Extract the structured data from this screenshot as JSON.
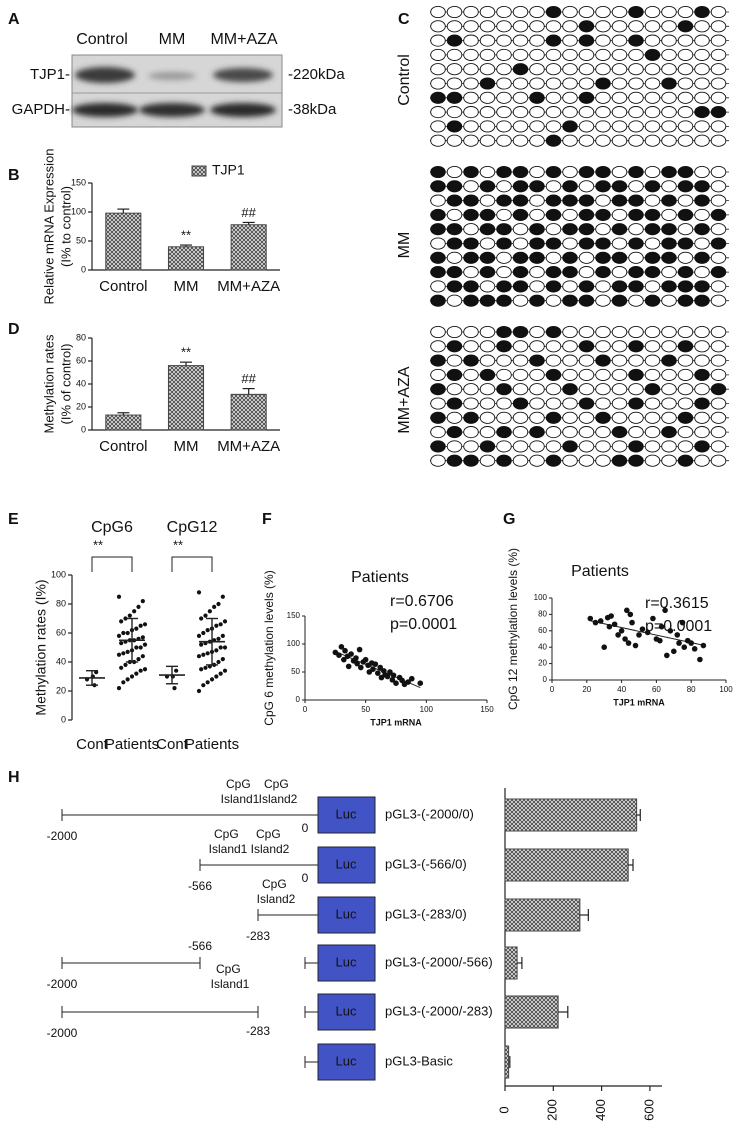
{
  "panel_labels": [
    "A",
    "B",
    "C",
    "D",
    "E",
    "F",
    "G",
    "H"
  ],
  "blot": {
    "lanes": [
      "Control",
      "MM",
      "MM+AZA"
    ],
    "rows": [
      {
        "label": "TJP1-",
        "size": "-220kDa"
      },
      {
        "label": "GAPDH-",
        "size": "-38kDa"
      }
    ]
  },
  "methylation": {
    "groups": [
      {
        "name": "Control",
        "rows": [
          [
            0,
            0,
            0,
            0,
            0,
            0,
            0,
            1,
            0,
            0,
            0,
            0,
            1,
            0,
            0,
            0,
            1,
            0
          ],
          [
            0,
            0,
            0,
            0,
            0,
            0,
            0,
            0,
            0,
            1,
            0,
            0,
            0,
            0,
            0,
            1,
            0,
            0
          ],
          [
            0,
            1,
            0,
            0,
            0,
            0,
            0,
            1,
            0,
            1,
            0,
            0,
            1,
            0,
            0,
            0,
            0,
            0
          ],
          [
            0,
            0,
            0,
            0,
            0,
            0,
            0,
            0,
            0,
            0,
            0,
            0,
            0,
            1,
            0,
            0,
            0,
            0
          ],
          [
            0,
            0,
            0,
            0,
            0,
            1,
            0,
            0,
            0,
            0,
            0,
            0,
            0,
            0,
            0,
            0,
            0,
            0
          ],
          [
            0,
            0,
            0,
            1,
            0,
            0,
            0,
            0,
            0,
            0,
            1,
            0,
            0,
            0,
            1,
            0,
            0,
            0
          ],
          [
            1,
            1,
            0,
            0,
            0,
            0,
            1,
            0,
            0,
            1,
            0,
            0,
            0,
            0,
            0,
            0,
            0,
            0
          ],
          [
            0,
            0,
            0,
            0,
            0,
            0,
            0,
            0,
            0,
            0,
            0,
            0,
            0,
            0,
            0,
            0,
            1,
            1
          ],
          [
            0,
            1,
            0,
            0,
            0,
            0,
            0,
            0,
            1,
            0,
            0,
            0,
            0,
            0,
            0,
            0,
            0,
            0
          ],
          [
            0,
            0,
            0,
            0,
            0,
            0,
            0,
            1,
            0,
            0,
            0,
            0,
            0,
            0,
            0,
            0,
            0,
            0
          ]
        ]
      },
      {
        "name": "MM",
        "rows": [
          [
            1,
            0,
            1,
            0,
            1,
            1,
            0,
            1,
            0,
            1,
            1,
            0,
            1,
            0,
            1,
            1,
            0,
            0
          ],
          [
            1,
            1,
            0,
            1,
            0,
            1,
            1,
            0,
            1,
            0,
            1,
            1,
            0,
            1,
            0,
            1,
            1,
            0
          ],
          [
            0,
            1,
            1,
            0,
            1,
            1,
            0,
            1,
            1,
            1,
            0,
            1,
            1,
            0,
            1,
            0,
            1,
            0
          ],
          [
            1,
            0,
            1,
            1,
            0,
            1,
            0,
            1,
            0,
            1,
            1,
            0,
            1,
            1,
            0,
            1,
            0,
            1
          ],
          [
            1,
            1,
            0,
            1,
            1,
            0,
            1,
            0,
            1,
            1,
            0,
            1,
            0,
            1,
            1,
            0,
            1,
            0
          ],
          [
            0,
            1,
            1,
            0,
            1,
            0,
            1,
            1,
            0,
            1,
            1,
            0,
            1,
            0,
            1,
            1,
            0,
            1
          ],
          [
            1,
            0,
            1,
            1,
            0,
            1,
            1,
            0,
            1,
            0,
            1,
            1,
            0,
            1,
            1,
            0,
            1,
            0
          ],
          [
            1,
            1,
            0,
            1,
            0,
            1,
            0,
            1,
            1,
            0,
            1,
            0,
            1,
            1,
            0,
            1,
            0,
            1
          ],
          [
            0,
            1,
            1,
            0,
            1,
            1,
            0,
            1,
            0,
            1,
            0,
            1,
            1,
            0,
            1,
            1,
            1,
            0
          ],
          [
            1,
            0,
            1,
            1,
            1,
            0,
            1,
            0,
            1,
            1,
            0,
            1,
            0,
            1,
            0,
            1,
            1,
            0
          ]
        ]
      },
      {
        "name": "MM+AZA",
        "rows": [
          [
            0,
            0,
            0,
            0,
            1,
            1,
            0,
            1,
            0,
            0,
            0,
            0,
            0,
            0,
            0,
            0,
            0,
            0
          ],
          [
            0,
            1,
            0,
            0,
            1,
            0,
            0,
            0,
            0,
            1,
            0,
            0,
            1,
            0,
            0,
            1,
            0,
            0
          ],
          [
            1,
            0,
            1,
            0,
            0,
            0,
            1,
            0,
            0,
            0,
            1,
            0,
            0,
            0,
            1,
            0,
            0,
            0
          ],
          [
            0,
            1,
            0,
            1,
            0,
            0,
            0,
            1,
            0,
            0,
            0,
            0,
            1,
            0,
            0,
            0,
            1,
            0
          ],
          [
            1,
            0,
            0,
            0,
            1,
            0,
            0,
            0,
            1,
            0,
            0,
            0,
            0,
            1,
            0,
            0,
            0,
            1
          ],
          [
            0,
            1,
            0,
            0,
            0,
            1,
            0,
            0,
            0,
            1,
            0,
            0,
            1,
            0,
            0,
            0,
            1,
            0
          ],
          [
            1,
            0,
            1,
            0,
            0,
            0,
            0,
            1,
            0,
            0,
            1,
            0,
            0,
            0,
            0,
            1,
            0,
            0
          ],
          [
            0,
            1,
            0,
            0,
            1,
            0,
            1,
            0,
            0,
            0,
            0,
            1,
            0,
            0,
            1,
            0,
            0,
            0
          ],
          [
            1,
            0,
            0,
            1,
            0,
            0,
            0,
            0,
            1,
            0,
            0,
            0,
            1,
            0,
            0,
            0,
            1,
            0
          ],
          [
            0,
            1,
            1,
            0,
            1,
            0,
            0,
            1,
            0,
            0,
            0,
            1,
            1,
            0,
            0,
            1,
            0,
            0
          ]
        ]
      }
    ]
  },
  "chart_data": [
    {
      "type": "bar",
      "categories": [
        "Control",
        "MM",
        "MM+AZA"
      ],
      "series": [
        {
          "name": "TJP1",
          "values": [
            98,
            40,
            78
          ],
          "errors": [
            7,
            3,
            4
          ]
        }
      ],
      "annotations": [
        null,
        "**",
        "##"
      ],
      "ylabel": [
        "Relative mRNA Expression",
        "(I% to control)"
      ],
      "ylim": [
        0,
        150
      ],
      "yticks": [
        0,
        50,
        100,
        150
      ],
      "legend": "top-right",
      "color": "#444"
    },
    {
      "type": "bar",
      "categories": [
        "Control",
        "MM",
        "MM+AZA"
      ],
      "values": [
        13,
        56,
        31
      ],
      "errors": [
        2,
        3,
        5
      ],
      "annotations": [
        null,
        "**",
        "##"
      ],
      "ylabel": [
        "Methylation rates",
        "(I% of control)"
      ],
      "ylim": [
        0,
        80
      ],
      "yticks": [
        0,
        20,
        40,
        60,
        80
      ],
      "color": "#444"
    },
    {
      "type": "dotplot",
      "ylabel": "Methylation rates (I%)",
      "ylim": [
        0,
        100
      ],
      "yticks": [
        0,
        20,
        40,
        60,
        80,
        100
      ],
      "groups": [
        {
          "name": "CpG6",
          "categories": [
            "Cont",
            "Patients"
          ],
          "significance": "**",
          "points": [
            [
              28,
              33,
              24,
              30
            ],
            [
              85,
              82,
              78,
              75,
              72,
              70,
              68,
              66,
              65,
              63,
              62,
              60,
              60,
              58,
              57,
              56,
              55,
              55,
              54,
              53,
              52,
              50,
              50,
              48,
              47,
              46,
              45,
              44,
              42,
              40,
              40,
              38,
              36,
              35,
              34,
              32,
              30,
              28,
              26,
              22
            ]
          ],
          "mean": [
            29,
            55
          ],
          "sd": [
            5,
            15
          ]
        },
        {
          "name": "CpG12",
          "categories": [
            "Cont",
            "Patients"
          ],
          "significance": "**",
          "points": [
            [
              30,
              34,
              22,
              30
            ],
            [
              88,
              85,
              80,
              78,
              75,
              72,
              70,
              68,
              66,
              65,
              63,
              62,
              60,
              58,
              58,
              56,
              55,
              54,
              53,
              52,
              50,
              50,
              48,
              47,
              46,
              45,
              44,
              42,
              40,
              38,
              37,
              36,
              35,
              34,
              32,
              30,
              28,
              26,
              24,
              20
            ]
          ],
          "mean": [
            31,
            54
          ],
          "sd": [
            6,
            16
          ]
        }
      ]
    },
    {
      "type": "scatter",
      "title": "Patients",
      "annotations": [
        "r=0.6706",
        "p=0.0001"
      ],
      "xlabel": "TJP1 mRNA",
      "ylabel": "CpG 6 methylation levels (%)",
      "x": [
        25,
        28,
        30,
        32,
        33,
        35,
        36,
        38,
        40,
        42,
        43,
        45,
        46,
        48,
        50,
        52,
        53,
        55,
        56,
        58,
        60,
        62,
        63,
        65,
        66,
        68,
        70,
        72,
        73,
        75,
        78,
        80,
        82,
        85,
        88,
        95
      ],
      "y": [
        85,
        80,
        95,
        72,
        88,
        78,
        60,
        82,
        70,
        75,
        65,
        90,
        58,
        68,
        72,
        62,
        50,
        66,
        55,
        64,
        48,
        58,
        40,
        52,
        45,
        42,
        50,
        36,
        44,
        30,
        40,
        35,
        28,
        32,
        38,
        30
      ],
      "xlim": [
        0,
        150
      ],
      "xticks": [
        0,
        50,
        100,
        150
      ],
      "ylim": [
        0,
        150
      ],
      "yticks": [
        0,
        50,
        100,
        150
      ]
    },
    {
      "type": "scatter",
      "title": "Patients",
      "annotations": [
        "r=0.3615",
        "p=0.0001"
      ],
      "xlabel": "TJP1 mRNA",
      "ylabel": "CpG 12 methylation levels (%)",
      "x": [
        22,
        25,
        28,
        30,
        32,
        33,
        34,
        36,
        38,
        40,
        42,
        43,
        44,
        45,
        46,
        48,
        50,
        52,
        55,
        58,
        60,
        62,
        63,
        65,
        66,
        68,
        70,
        72,
        73,
        75,
        76,
        78,
        80,
        82,
        85,
        87
      ],
      "y": [
        75,
        70,
        72,
        40,
        76,
        65,
        78,
        68,
        55,
        60,
        50,
        85,
        45,
        80,
        70,
        42,
        55,
        62,
        58,
        75,
        50,
        48,
        65,
        85,
        30,
        60,
        35,
        55,
        45,
        70,
        40,
        48,
        45,
        38,
        25,
        42
      ],
      "xlim": [
        0,
        100
      ],
      "xticks": [
        0,
        20,
        40,
        60,
        80,
        100
      ],
      "ylim": [
        0,
        100
      ],
      "yticks": [
        0,
        20,
        40,
        60,
        80,
        100
      ]
    },
    {
      "type": "hbar",
      "reporter": "Luc",
      "categories": [
        "pGL3-(-2000/0)",
        "pGL3-(-566/0)",
        "pGL3-(-283/0)",
        "pGL3-(-2000/-566)",
        "pGL3-(-2000/-283)",
        "pGL3-Basic"
      ],
      "values": [
        545,
        510,
        310,
        50,
        220,
        15
      ],
      "errors": [
        15,
        20,
        35,
        20,
        40,
        5
      ],
      "xlim": [
        0,
        650
      ],
      "xticks": [
        0,
        200,
        400,
        600
      ],
      "color": "#444",
      "constructs": [
        {
          "start": "-2000",
          "end": "0",
          "islands": [
            "CpG Island1",
            "CpG Island2"
          ]
        },
        {
          "start": "-566",
          "end": "0",
          "islands": [
            "CpG Island1",
            "CpG Island2"
          ]
        },
        {
          "start": "-283",
          "islands": [
            "CpG Island2"
          ]
        },
        {
          "start": "-2000",
          "end": "-566"
        },
        {
          "start": "-2000",
          "end": "-283",
          "islands": [
            "CpG Island1"
          ]
        },
        {}
      ]
    }
  ]
}
